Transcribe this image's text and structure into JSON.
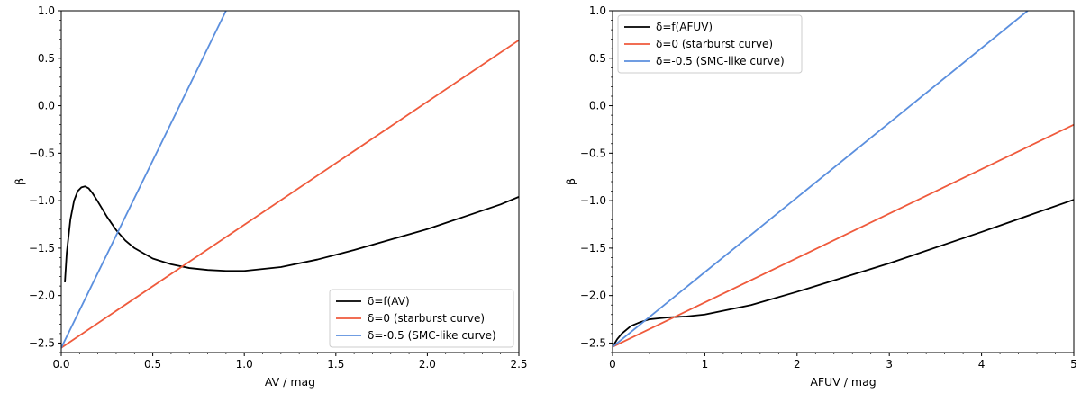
{
  "chart_data": [
    {
      "type": "line",
      "xlabel": "AV / mag",
      "ylabel": "β",
      "xlim": [
        0,
        2.5
      ],
      "ylim": [
        -2.6,
        1.0
      ],
      "x_ticks": [
        0.0,
        0.5,
        1.0,
        1.5,
        2.0,
        2.5
      ],
      "x_tick_labels": [
        "0.0",
        "0.5",
        "1.0",
        "1.5",
        "2.0",
        "2.5"
      ],
      "y_ticks": [
        -2.5,
        -2.0,
        -1.5,
        -1.0,
        -0.5,
        0.0,
        0.5,
        1.0
      ],
      "y_tick_labels": [
        "−2.5",
        "−2.0",
        "−1.5",
        "−1.0",
        "−0.5",
        "0.0",
        "0.5",
        "1.0"
      ],
      "legend_position": "bottom-right",
      "series": [
        {
          "name": "δ=f(AV)",
          "color": "#000000",
          "x": [
            0.02,
            0.03,
            0.05,
            0.07,
            0.09,
            0.11,
            0.13,
            0.15,
            0.17,
            0.2,
            0.25,
            0.3,
            0.35,
            0.4,
            0.5,
            0.6,
            0.7,
            0.8,
            0.9,
            1.0,
            1.2,
            1.4,
            1.6,
            1.8,
            2.0,
            2.2,
            2.4,
            2.5
          ],
          "y": [
            -1.86,
            -1.55,
            -1.2,
            -1.0,
            -0.9,
            -0.86,
            -0.85,
            -0.87,
            -0.92,
            -1.01,
            -1.17,
            -1.31,
            -1.42,
            -1.5,
            -1.61,
            -1.67,
            -1.71,
            -1.73,
            -1.74,
            -1.74,
            -1.7,
            -1.62,
            -1.52,
            -1.41,
            -1.3,
            -1.17,
            -1.04,
            -0.96
          ]
        },
        {
          "name": "δ=0 (starburst curve)",
          "color": "#ef5a3c",
          "x": [
            0.0,
            2.5
          ],
          "y": [
            -2.55,
            0.69
          ]
        },
        {
          "name": "δ=-0.5 (SMC-like curve)",
          "color": "#5b8fde",
          "x": [
            0.0,
            0.9
          ],
          "y": [
            -2.55,
            1.0
          ]
        }
      ]
    },
    {
      "type": "line",
      "xlabel": "AFUV / mag",
      "ylabel": "β",
      "xlim": [
        0,
        5
      ],
      "ylim": [
        -2.6,
        1.0
      ],
      "x_ticks": [
        0,
        1,
        2,
        3,
        4,
        5
      ],
      "x_tick_labels": [
        "0",
        "1",
        "2",
        "3",
        "4",
        "5"
      ],
      "y_ticks": [
        -2.5,
        -2.0,
        -1.5,
        -1.0,
        -0.5,
        0.0,
        0.5,
        1.0
      ],
      "y_tick_labels": [
        "−2.5",
        "−2.0",
        "−1.5",
        "−1.0",
        "−0.5",
        "0.0",
        "0.5",
        "1.0"
      ],
      "legend_position": "top-left",
      "series": [
        {
          "name": "δ=f(AFUV)",
          "color": "#000000",
          "x": [
            0.0,
            0.05,
            0.1,
            0.15,
            0.2,
            0.3,
            0.4,
            0.5,
            0.6,
            0.8,
            1.0,
            1.5,
            2.0,
            3.0,
            4.0,
            5.0
          ],
          "y": [
            -2.54,
            -2.46,
            -2.4,
            -2.36,
            -2.32,
            -2.28,
            -2.25,
            -2.24,
            -2.23,
            -2.22,
            -2.2,
            -2.1,
            -1.96,
            -1.66,
            -1.33,
            -0.99
          ]
        },
        {
          "name": "δ=0 (starburst curve)",
          "color": "#ef5a3c",
          "x": [
            0.0,
            5.0
          ],
          "y": [
            -2.54,
            -0.2
          ]
        },
        {
          "name": "δ=-0.5 (SMC-like curve)",
          "color": "#5b8fde",
          "x": [
            0.0,
            4.5
          ],
          "y": [
            -2.54,
            1.0
          ]
        }
      ]
    }
  ]
}
